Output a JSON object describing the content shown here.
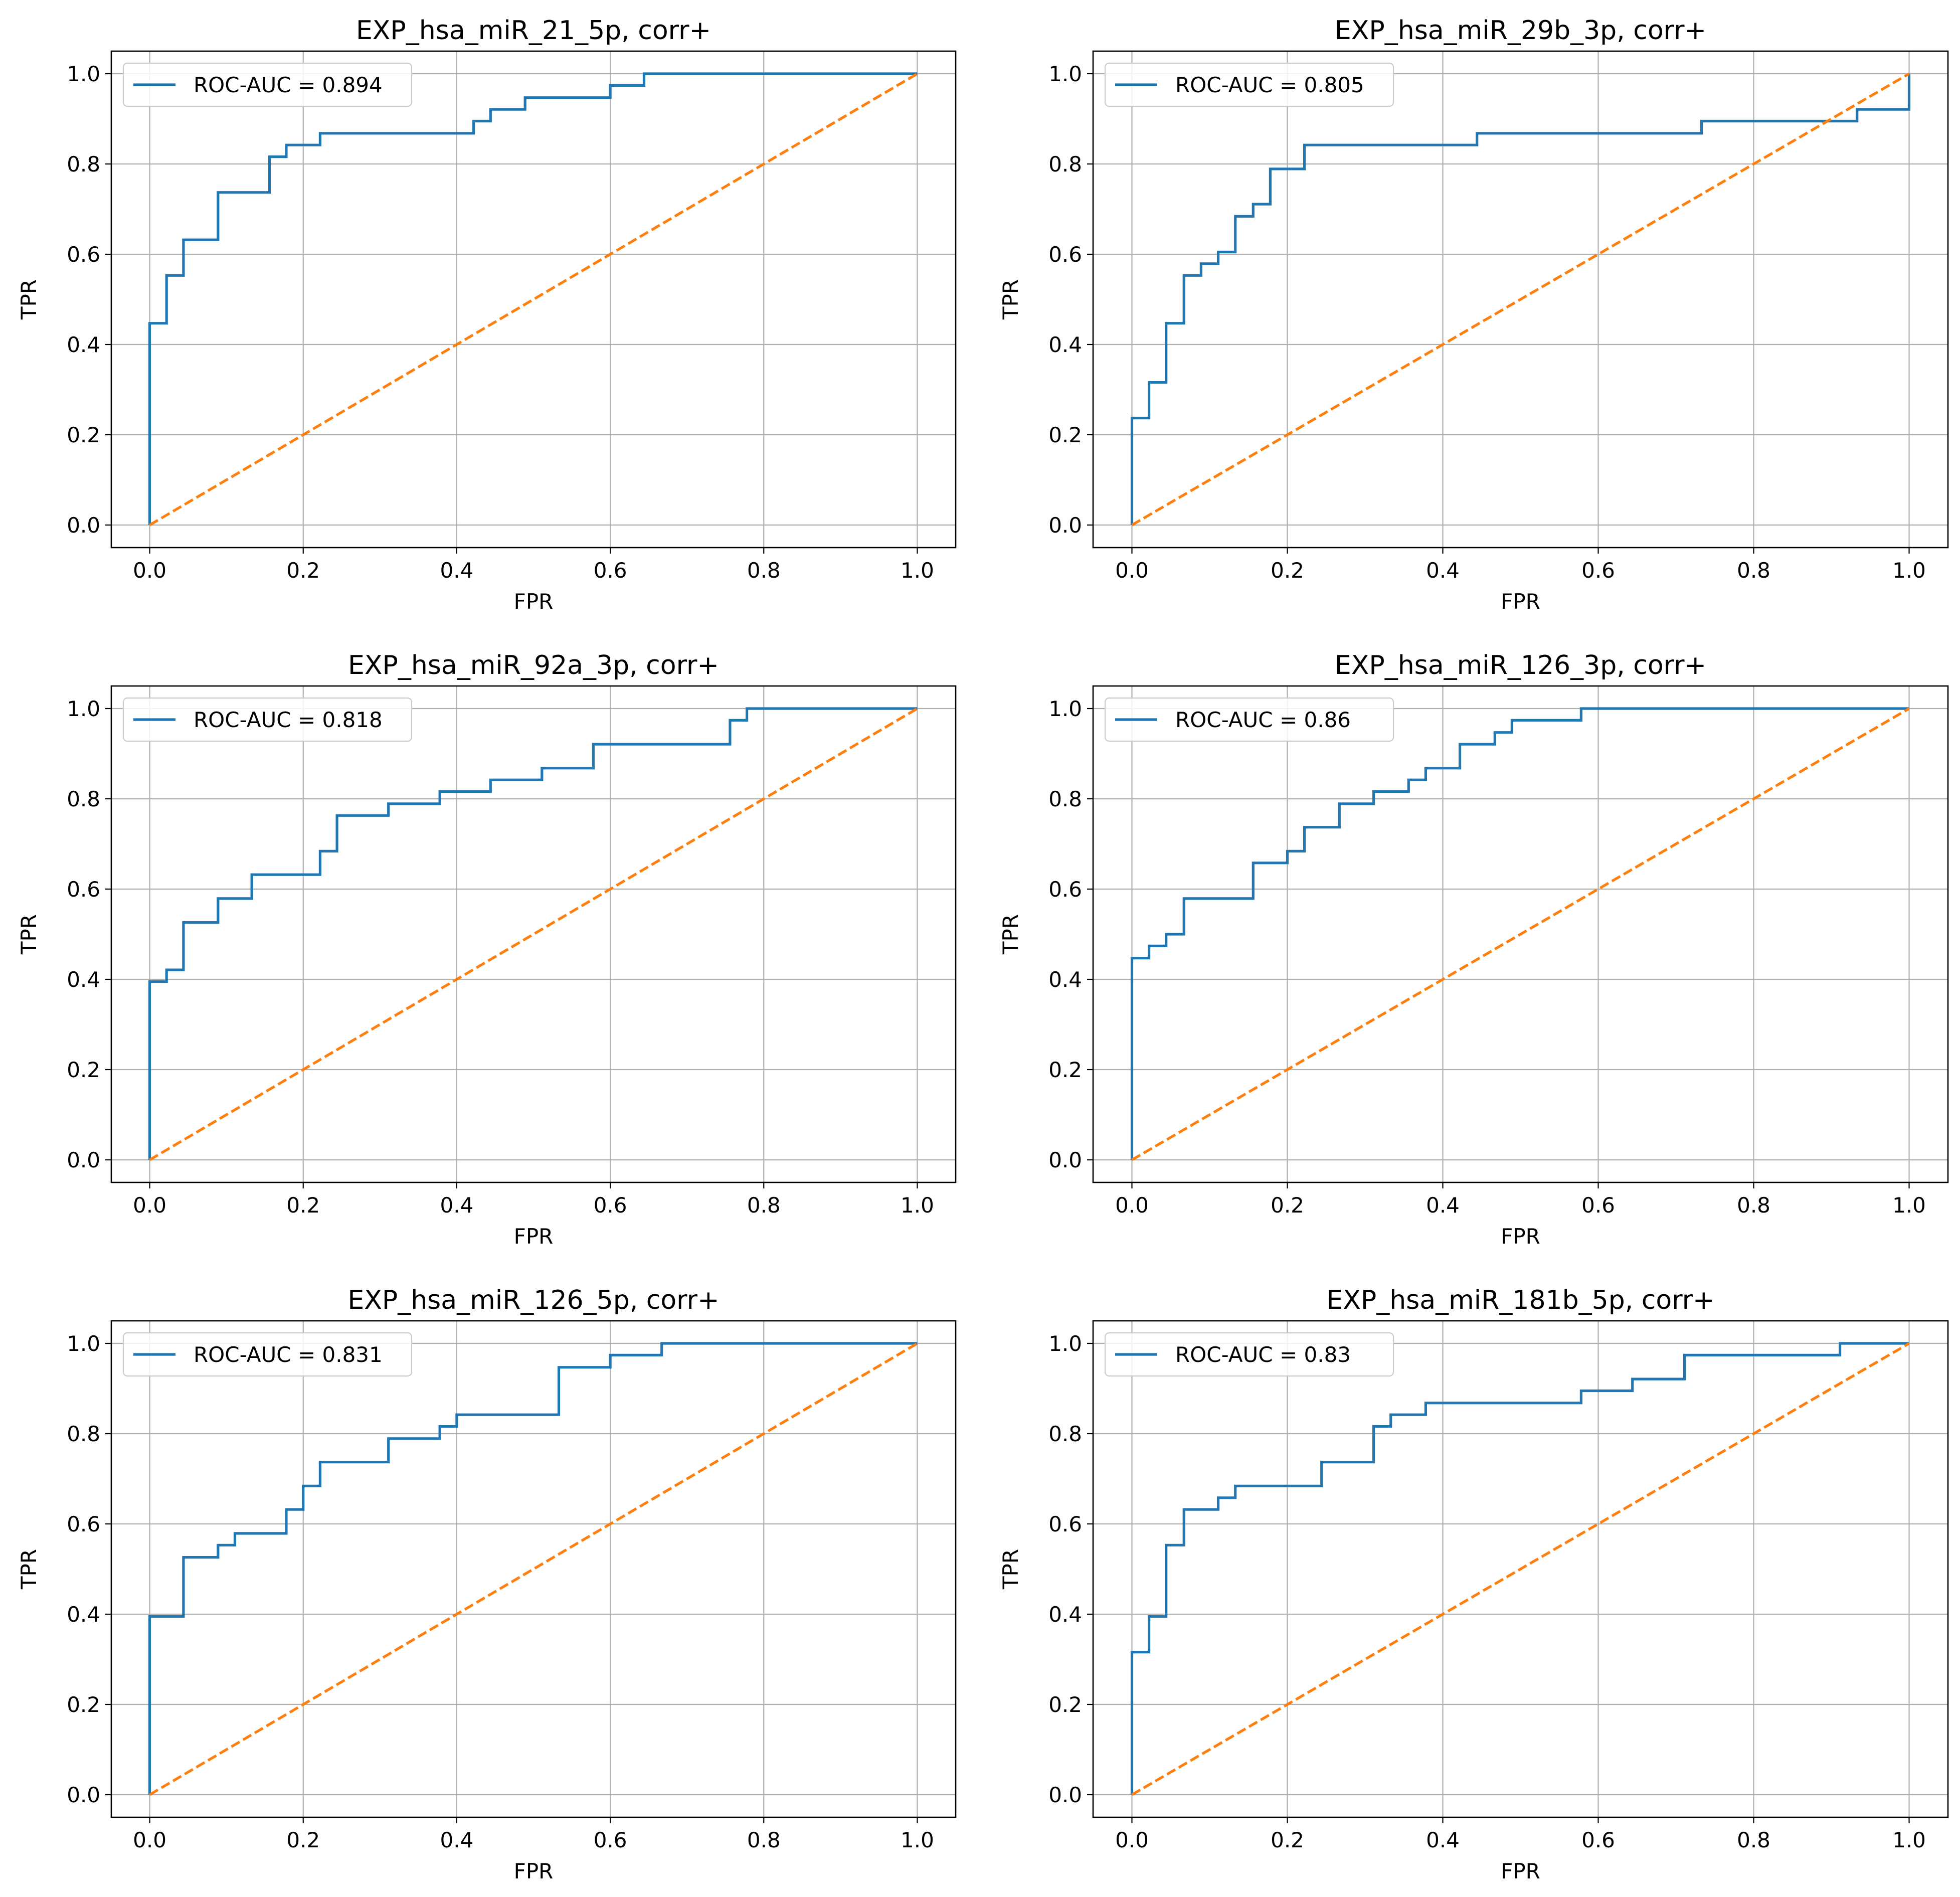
{
  "figure": {
    "colors": {
      "roc": "#1f77b4",
      "chance": "#ff7f0e",
      "grid": "#b0b0b0",
      "axes": "#000000"
    }
  },
  "chart_data": [
    {
      "type": "line",
      "title": "EXP_hsa_miR_21_5p, corr+",
      "xlabel": "FPR",
      "ylabel": "TPR",
      "xlim": [
        -0.05,
        1.05
      ],
      "ylim": [
        -0.05,
        1.05
      ],
      "xticks": [
        "0.0",
        "0.2",
        "0.4",
        "0.6",
        "0.8",
        "1.0"
      ],
      "yticks": [
        "0.0",
        "0.2",
        "0.4",
        "0.6",
        "0.8",
        "1.0"
      ],
      "grid": true,
      "legend_position": "top-left",
      "series": [
        {
          "name": "ROC-AUC = 0.894",
          "style": "solid",
          "x": [
            0,
            0,
            0.022,
            0.022,
            0.044,
            0.044,
            0.089,
            0.089,
            0.156,
            0.156,
            0.178,
            0.178,
            0.222,
            0.222,
            0.422,
            0.422,
            0.444,
            0.444,
            0.489,
            0.489,
            0.6,
            0.6,
            0.644,
            0.644,
            1.0
          ],
          "y": [
            0,
            0.447,
            0.447,
            0.553,
            0.553,
            0.632,
            0.632,
            0.737,
            0.737,
            0.816,
            0.816,
            0.842,
            0.842,
            0.868,
            0.868,
            0.895,
            0.895,
            0.921,
            0.921,
            0.947,
            0.947,
            0.974,
            0.974,
            1.0,
            1.0
          ]
        },
        {
          "name": "",
          "style": "dashed",
          "x": [
            0,
            1
          ],
          "y": [
            0,
            1
          ]
        }
      ]
    },
    {
      "type": "line",
      "title": "EXP_hsa_miR_29b_3p, corr+",
      "xlabel": "FPR",
      "ylabel": "TPR",
      "xlim": [
        -0.05,
        1.05
      ],
      "ylim": [
        -0.05,
        1.05
      ],
      "xticks": [
        "0.0",
        "0.2",
        "0.4",
        "0.6",
        "0.8",
        "1.0"
      ],
      "yticks": [
        "0.0",
        "0.2",
        "0.4",
        "0.6",
        "0.8",
        "1.0"
      ],
      "grid": true,
      "legend_position": "top-left",
      "series": [
        {
          "name": "ROC-AUC = 0.805",
          "style": "solid",
          "x": [
            0,
            0,
            0.022,
            0.022,
            0.044,
            0.044,
            0.067,
            0.067,
            0.089,
            0.089,
            0.111,
            0.111,
            0.133,
            0.133,
            0.156,
            0.156,
            0.178,
            0.178,
            0.222,
            0.222,
            0.444,
            0.444,
            0.733,
            0.733,
            0.933,
            0.933,
            1.0,
            1.0
          ],
          "y": [
            0,
            0.237,
            0.237,
            0.316,
            0.316,
            0.447,
            0.447,
            0.553,
            0.553,
            0.579,
            0.579,
            0.605,
            0.605,
            0.684,
            0.684,
            0.711,
            0.711,
            0.789,
            0.789,
            0.842,
            0.842,
            0.868,
            0.868,
            0.895,
            0.895,
            0.921,
            0.921,
            1.0
          ]
        },
        {
          "name": "",
          "style": "dashed",
          "x": [
            0,
            1
          ],
          "y": [
            0,
            1
          ]
        }
      ]
    },
    {
      "type": "line",
      "title": "EXP_hsa_miR_92a_3p, corr+",
      "xlabel": "FPR",
      "ylabel": "TPR",
      "xlim": [
        -0.05,
        1.05
      ],
      "ylim": [
        -0.05,
        1.05
      ],
      "xticks": [
        "0.0",
        "0.2",
        "0.4",
        "0.6",
        "0.8",
        "1.0"
      ],
      "yticks": [
        "0.0",
        "0.2",
        "0.4",
        "0.6",
        "0.8",
        "1.0"
      ],
      "grid": true,
      "legend_position": "top-left",
      "series": [
        {
          "name": "ROC-AUC = 0.818",
          "style": "solid",
          "x": [
            0,
            0,
            0.022,
            0.022,
            0.044,
            0.044,
            0.089,
            0.089,
            0.133,
            0.133,
            0.222,
            0.222,
            0.244,
            0.244,
            0.311,
            0.311,
            0.378,
            0.378,
            0.444,
            0.444,
            0.511,
            0.511,
            0.578,
            0.578,
            0.756,
            0.756,
            0.778,
            0.778,
            1.0
          ],
          "y": [
            0,
            0.395,
            0.395,
            0.421,
            0.421,
            0.526,
            0.526,
            0.579,
            0.579,
            0.632,
            0.632,
            0.684,
            0.684,
            0.763,
            0.763,
            0.789,
            0.789,
            0.816,
            0.816,
            0.842,
            0.842,
            0.868,
            0.868,
            0.921,
            0.921,
            0.974,
            0.974,
            1.0,
            1.0
          ]
        },
        {
          "name": "",
          "style": "dashed",
          "x": [
            0,
            1
          ],
          "y": [
            0,
            1
          ]
        }
      ]
    },
    {
      "type": "line",
      "title": "EXP_hsa_miR_126_3p, corr+",
      "xlabel": "FPR",
      "ylabel": "TPR",
      "xlim": [
        -0.05,
        1.05
      ],
      "ylim": [
        -0.05,
        1.05
      ],
      "xticks": [
        "0.0",
        "0.2",
        "0.4",
        "0.6",
        "0.8",
        "1.0"
      ],
      "yticks": [
        "0.0",
        "0.2",
        "0.4",
        "0.6",
        "0.8",
        "1.0"
      ],
      "grid": true,
      "legend_position": "top-left",
      "series": [
        {
          "name": "ROC-AUC = 0.86",
          "style": "solid",
          "x": [
            0,
            0,
            0.022,
            0.022,
            0.044,
            0.044,
            0.067,
            0.067,
            0.156,
            0.156,
            0.2,
            0.2,
            0.222,
            0.222,
            0.267,
            0.267,
            0.311,
            0.311,
            0.356,
            0.356,
            0.378,
            0.378,
            0.422,
            0.422,
            0.467,
            0.467,
            0.489,
            0.489,
            0.578,
            0.578,
            1.0
          ],
          "y": [
            0,
            0.447,
            0.447,
            0.474,
            0.474,
            0.5,
            0.5,
            0.579,
            0.579,
            0.658,
            0.658,
            0.684,
            0.684,
            0.737,
            0.737,
            0.789,
            0.789,
            0.816,
            0.816,
            0.842,
            0.842,
            0.868,
            0.868,
            0.921,
            0.921,
            0.947,
            0.947,
            0.974,
            0.974,
            1.0,
            1.0
          ]
        },
        {
          "name": "",
          "style": "dashed",
          "x": [
            0,
            1
          ],
          "y": [
            0,
            1
          ]
        }
      ]
    },
    {
      "type": "line",
      "title": "EXP_hsa_miR_126_5p, corr+",
      "xlabel": "FPR",
      "ylabel": "TPR",
      "xlim": [
        -0.05,
        1.05
      ],
      "ylim": [
        -0.05,
        1.05
      ],
      "xticks": [
        "0.0",
        "0.2",
        "0.4",
        "0.6",
        "0.8",
        "1.0"
      ],
      "yticks": [
        "0.0",
        "0.2",
        "0.4",
        "0.6",
        "0.8",
        "1.0"
      ],
      "grid": true,
      "legend_position": "top-left",
      "series": [
        {
          "name": "ROC-AUC = 0.831",
          "style": "solid",
          "x": [
            0,
            0,
            0.044,
            0.044,
            0.089,
            0.089,
            0.111,
            0.111,
            0.178,
            0.178,
            0.2,
            0.2,
            0.222,
            0.222,
            0.311,
            0.311,
            0.378,
            0.378,
            0.4,
            0.4,
            0.533,
            0.533,
            0.6,
            0.6,
            0.667,
            0.667,
            1.0
          ],
          "y": [
            0,
            0.395,
            0.395,
            0.526,
            0.526,
            0.553,
            0.553,
            0.579,
            0.579,
            0.632,
            0.632,
            0.684,
            0.684,
            0.737,
            0.737,
            0.789,
            0.789,
            0.816,
            0.816,
            0.842,
            0.842,
            0.947,
            0.947,
            0.974,
            0.974,
            1.0,
            1.0
          ]
        },
        {
          "name": "",
          "style": "dashed",
          "x": [
            0,
            1
          ],
          "y": [
            0,
            1
          ]
        }
      ]
    },
    {
      "type": "line",
      "title": "EXP_hsa_miR_181b_5p, corr+",
      "xlabel": "FPR",
      "ylabel": "TPR",
      "xlim": [
        -0.05,
        1.05
      ],
      "ylim": [
        -0.05,
        1.05
      ],
      "xticks": [
        "0.0",
        "0.2",
        "0.4",
        "0.6",
        "0.8",
        "1.0"
      ],
      "yticks": [
        "0.0",
        "0.2",
        "0.4",
        "0.6",
        "0.8",
        "1.0"
      ],
      "grid": true,
      "legend_position": "top-left",
      "series": [
        {
          "name": "ROC-AUC = 0.83",
          "style": "solid",
          "x": [
            0,
            0,
            0.022,
            0.022,
            0.044,
            0.044,
            0.067,
            0.067,
            0.111,
            0.111,
            0.133,
            0.133,
            0.244,
            0.244,
            0.311,
            0.311,
            0.333,
            0.333,
            0.378,
            0.378,
            0.578,
            0.578,
            0.644,
            0.644,
            0.711,
            0.711,
            0.911,
            0.911,
            1.0
          ],
          "y": [
            0,
            0.316,
            0.316,
            0.395,
            0.395,
            0.553,
            0.553,
            0.632,
            0.632,
            0.658,
            0.658,
            0.684,
            0.684,
            0.737,
            0.737,
            0.816,
            0.816,
            0.842,
            0.842,
            0.868,
            0.868,
            0.895,
            0.895,
            0.921,
            0.921,
            0.974,
            0.974,
            1.0,
            1.0
          ]
        },
        {
          "name": "",
          "style": "dashed",
          "x": [
            0,
            1
          ],
          "y": [
            0,
            1
          ]
        }
      ]
    }
  ]
}
